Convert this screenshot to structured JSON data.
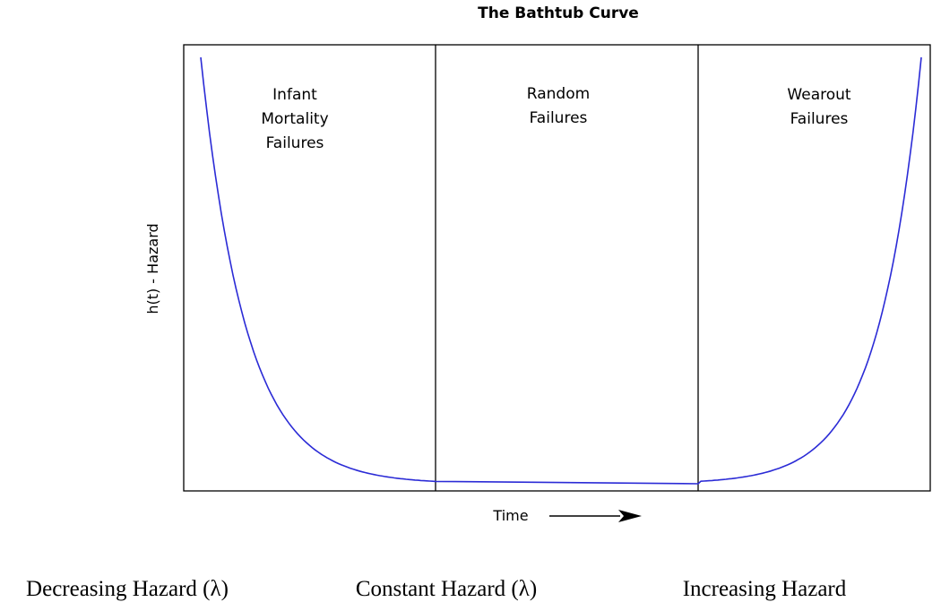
{
  "chart_data": {
    "type": "line",
    "title": "The Bathtub Curve",
    "xlabel": "Time",
    "ylabel": "h(t) - Hazard",
    "axes": {
      "ticks": false,
      "grid": false,
      "x_arrow": true
    },
    "regions": [
      {
        "lines": [
          "Infant",
          "Mortality",
          "Failures"
        ],
        "hazard": "Decreasing Hazard (λ)"
      },
      {
        "lines": [
          "Random",
          "Failures"
        ],
        "hazard": "Constant Hazard (λ)"
      },
      {
        "lines": [
          "Wearout",
          "Failures"
        ],
        "hazard": "Increasing Hazard"
      }
    ],
    "series": [
      {
        "color": "#2b2bd6",
        "shape": "bathtub: decreasing, then constant, then increasing"
      }
    ]
  }
}
